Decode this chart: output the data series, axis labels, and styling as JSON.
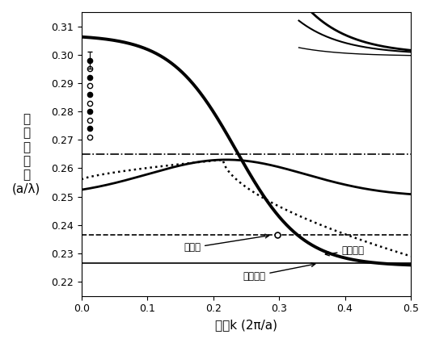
{
  "xlim": [
    0,
    0.5
  ],
  "ylim": [
    0.215,
    0.315
  ],
  "xlabel": "波矢k (2π/a)",
  "ylabel": "归\n一\n化\n频\n率\n(a/λ)",
  "hline_dashdot": 0.265,
  "hline_dashed": 0.2365,
  "hline_solid": 0.2265,
  "background_color": "#ffffff",
  "tick_label_fontsize": 9,
  "axis_label_fontsize": 11
}
